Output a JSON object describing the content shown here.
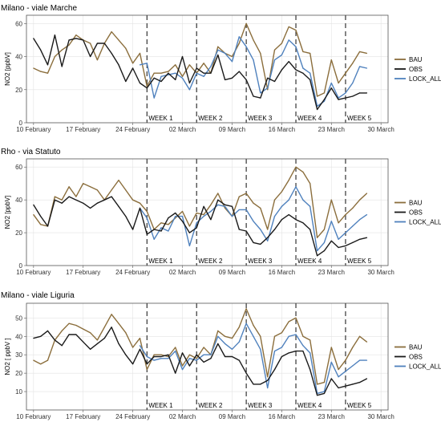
{
  "colors": {
    "BAU": "#8B6E3C",
    "OBS": "#1a1a1a",
    "LOCK_ALL": "#4F81BD",
    "grid": "#e3e3e3",
    "frame": "#555555",
    "vline": "#444444"
  },
  "chart_data": [
    {
      "type": "line",
      "title": "Milano - viale Marche",
      "ylabel": "NO2 [ppbV]",
      "ylim": [
        0,
        65
      ],
      "yticks": [
        0,
        20,
        40,
        60
      ],
      "x_start": "10 February",
      "xtick_labels": [
        "10 February",
        "17 February",
        "24 February",
        "02 March",
        "09 March",
        "16 March",
        "23 March",
        "30 March"
      ],
      "xtick_days": [
        0,
        7,
        14,
        21,
        28,
        35,
        42,
        49
      ],
      "week_lines": [
        16,
        23,
        30,
        37,
        44
      ],
      "week_labels": [
        "WEEK 1",
        "WEEK 2",
        "WEEK 3",
        "WEEK 4",
        "WEEK 5"
      ],
      "legend_position": "right",
      "series": [
        {
          "name": "BAU",
          "color": "#8B6E3C",
          "values": [
            33,
            31,
            30,
            40,
            44,
            47,
            53,
            50,
            48,
            38,
            48,
            55,
            50,
            45,
            36,
            42,
            22,
            30,
            30,
            31,
            35,
            28,
            35,
            30,
            36,
            30,
            46,
            42,
            40,
            48,
            60,
            50,
            42,
            20,
            44,
            48,
            58,
            56,
            43,
            42,
            16,
            18,
            38,
            24,
            30,
            36,
            43,
            42
          ]
        },
        {
          "name": "OBS",
          "color": "#1a1a1a",
          "values": [
            51,
            44,
            35,
            53,
            34,
            50,
            51,
            50,
            40,
            48,
            48,
            42,
            35,
            25,
            33,
            24,
            21,
            27,
            25,
            30,
            26,
            40,
            24,
            33,
            30,
            30,
            41,
            26,
            27,
            31,
            26,
            16,
            15,
            27,
            25,
            32,
            37,
            32,
            30,
            26,
            8,
            14,
            21,
            14,
            15,
            16,
            18,
            18
          ]
        },
        {
          "name": "LOCK_ALL",
          "color": "#4F81BD",
          "values": [
            null,
            null,
            null,
            null,
            null,
            null,
            null,
            null,
            null,
            null,
            null,
            null,
            null,
            null,
            null,
            35,
            36,
            15,
            28,
            29,
            30,
            27,
            20,
            30,
            28,
            34,
            44,
            42,
            37,
            52,
            46,
            38,
            18,
            21,
            38,
            41,
            50,
            46,
            33,
            30,
            10,
            13,
            24,
            15,
            18,
            24,
            34,
            33
          ]
        }
      ]
    },
    {
      "type": "line",
      "title": "Rho - via Statuto",
      "ylabel": "NO2 [ppbV]",
      "ylim": [
        0,
        65
      ],
      "yticks": [
        0,
        20,
        40,
        60
      ],
      "x_start": "10 February",
      "xtick_labels": [
        "10 February",
        "17 February",
        "24 February",
        "02 March",
        "09 March",
        "16 March",
        "23 March",
        "30 March"
      ],
      "xtick_days": [
        0,
        7,
        14,
        21,
        28,
        35,
        42,
        49
      ],
      "week_lines": [
        16,
        23,
        30,
        37,
        44
      ],
      "week_labels": [
        "WEEK 1",
        "WEEK 2",
        "WEEK 3",
        "WEEK 4",
        "WEEK 5"
      ],
      "legend_position": "right",
      "series": [
        {
          "name": "BAU",
          "color": "#8B6E3C",
          "values": [
            31,
            25,
            24,
            42,
            40,
            48,
            42,
            50,
            48,
            46,
            40,
            46,
            52,
            46,
            40,
            38,
            33,
            22,
            26,
            25,
            29,
            33,
            24,
            32,
            31,
            37,
            44,
            35,
            30,
            42,
            44,
            38,
            35,
            22,
            40,
            45,
            52,
            60,
            57,
            50,
            17,
            22,
            40,
            26,
            31,
            35,
            40,
            44
          ]
        },
        {
          "name": "OBS",
          "color": "#1a1a1a",
          "values": [
            37,
            30,
            24,
            40,
            38,
            42,
            40,
            38,
            35,
            38,
            40,
            42,
            36,
            30,
            22,
            35,
            19,
            22,
            21,
            29,
            32,
            27,
            20,
            23,
            36,
            28,
            40,
            37,
            36,
            22,
            21,
            14,
            13,
            17,
            22,
            28,
            31,
            28,
            26,
            22,
            6,
            9,
            15,
            11,
            12,
            14,
            16,
            17
          ]
        },
        {
          "name": "LOCK_ALL",
          "color": "#4F81BD",
          "values": [
            null,
            null,
            null,
            null,
            null,
            null,
            null,
            null,
            null,
            null,
            null,
            null,
            null,
            null,
            null,
            35,
            29,
            16,
            23,
            21,
            30,
            30,
            12,
            26,
            30,
            33,
            37,
            36,
            30,
            34,
            34,
            27,
            22,
            15,
            30,
            36,
            40,
            48,
            40,
            36,
            9,
            14,
            27,
            16,
            20,
            24,
            28,
            31
          ]
        }
      ]
    },
    {
      "type": "line",
      "title": "Milano - viale Liguria",
      "ylabel": "NO2 [ ppbV ]",
      "ylim": [
        0,
        58
      ],
      "yticks": [
        10,
        20,
        30,
        40,
        50
      ],
      "x_start": "10 February",
      "xtick_labels": [
        "10 February",
        "17 February",
        "24 February",
        "02 March",
        "09 March",
        "16 March",
        "23 March",
        "30 March"
      ],
      "xtick_days": [
        0,
        7,
        14,
        21,
        28,
        35,
        42,
        49
      ],
      "week_lines": [
        16,
        23,
        30,
        37,
        44
      ],
      "week_labels": [
        "WEEK 1",
        "WEEK 2",
        "WEEK 3",
        "WEEK 4",
        "WEEK 5"
      ],
      "legend_position": "right",
      "series": [
        {
          "name": "BAU",
          "color": "#8B6E3C",
          "values": [
            27,
            25,
            27,
            38,
            43,
            47,
            46,
            44,
            42,
            38,
            45,
            52,
            47,
            42,
            34,
            39,
            22,
            30,
            30,
            29,
            34,
            24,
            30,
            28,
            34,
            30,
            43,
            40,
            39,
            45,
            55,
            46,
            40,
            18,
            40,
            42,
            48,
            50,
            40,
            38,
            14,
            15,
            34,
            22,
            27,
            34,
            40,
            37
          ]
        },
        {
          "name": "OBS",
          "color": "#1a1a1a",
          "values": [
            39,
            40,
            43,
            38,
            35,
            41,
            41,
            37,
            33,
            36,
            39,
            45,
            36,
            30,
            25,
            33,
            25,
            29,
            29,
            30,
            20,
            31,
            24,
            30,
            26,
            28,
            36,
            29,
            29,
            27,
            20,
            14,
            14,
            16,
            22,
            29,
            31,
            32,
            32,
            22,
            8,
            9,
            17,
            12,
            13,
            14,
            15,
            17
          ]
        },
        {
          "name": "LOCK_ALL",
          "color": "#4F81BD",
          "values": [
            null,
            null,
            null,
            null,
            null,
            null,
            null,
            null,
            null,
            null,
            null,
            null,
            null,
            null,
            null,
            35,
            29,
            27,
            28,
            28,
            32,
            22,
            28,
            27,
            30,
            30,
            40,
            36,
            33,
            37,
            47,
            40,
            33,
            12,
            32,
            34,
            40,
            41,
            35,
            31,
            9,
            10,
            26,
            18,
            21,
            24,
            27,
            27
          ]
        }
      ]
    }
  ]
}
